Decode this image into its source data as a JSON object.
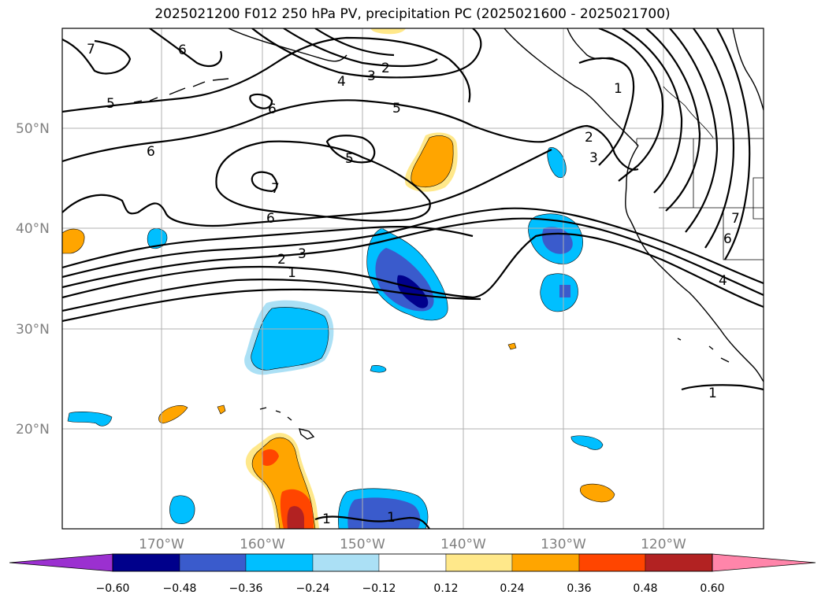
{
  "title": "2025021200 F012 250 hPa PV, precipitation PC (2025021600 - 2025021700)",
  "map": {
    "lat_labels": [
      "50°N",
      "40°N",
      "30°N",
      "20°N"
    ],
    "lon_labels": [
      "170°W",
      "160°W",
      "150°W",
      "140°W",
      "130°W",
      "120°W"
    ],
    "grid": true
  },
  "contour_labels": [
    "7",
    "6",
    "5",
    "6",
    "6",
    "5",
    "7",
    "6",
    "2",
    "3",
    "4",
    "5",
    "3",
    "2",
    "1",
    "1",
    "2",
    "3",
    "7",
    "6",
    "4",
    "1",
    "1",
    "1"
  ],
  "colorbar": {
    "ticks": [
      "−0.60",
      "−0.48",
      "−0.36",
      "−0.24",
      "−0.12",
      "0.12",
      "0.24",
      "0.36",
      "0.48",
      "0.60"
    ],
    "colors": [
      "#9b30d0",
      "#00008b",
      "#3a5bcc",
      "#00bfff",
      "#abe0f5",
      "#ffffff",
      "#ffe88a",
      "#ffa500",
      "#ff4500",
      "#b22222",
      "#ff85aa"
    ]
  }
}
